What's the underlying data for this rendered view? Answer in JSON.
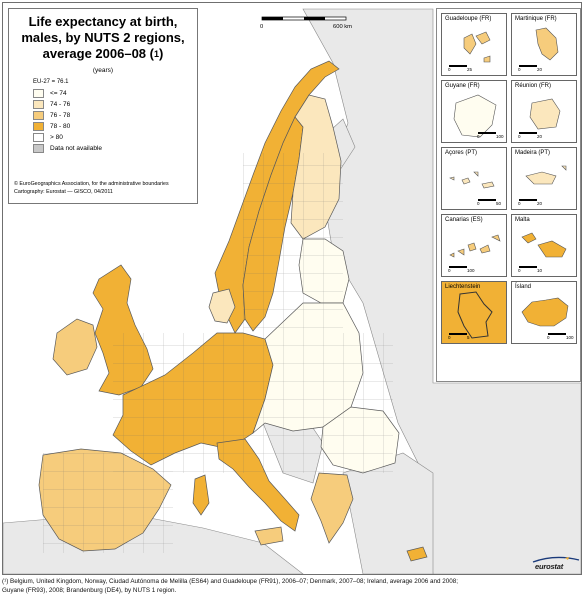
{
  "title": {
    "line1": "Life expectancy at birth,",
    "line2": "males, by NUTS 2 regions,",
    "line3_prefix": "average 2006–08 (",
    "line3_mark": "1",
    "line3_suffix": ")"
  },
  "unit": "(years)",
  "eu_average": "EU-27 = 76.1",
  "legend": {
    "classes": [
      {
        "label": "<= 74",
        "color": "#fffdf0"
      },
      {
        "label": "74 - 76",
        "color": "#fbe7bd"
      },
      {
        "label": "76 - 78",
        "color": "#f6cc7c"
      },
      {
        "label": "78 - 80",
        "color": "#f1b135"
      },
      {
        "label": "> 80",
        "color": "#ffffff"
      }
    ],
    "na": {
      "label": "Data not available",
      "color": "#c8c8c8"
    }
  },
  "credits": {
    "line1": "© EuroGeographics Association, for the administrative boundaries",
    "line2": "Cartography: Eurostat — GISCO, 04/2011"
  },
  "scale_bar": {
    "start": "0",
    "end": "600 km"
  },
  "insets": [
    {
      "name": "Guadeloupe (FR)",
      "scale_end": "25"
    },
    {
      "name": "Martinique (FR)",
      "scale_end": "20"
    },
    {
      "name": "Guyane (FR)",
      "scale_end": "100"
    },
    {
      "name": "Réunion (FR)",
      "scale_end": "20"
    },
    {
      "name": "Açores (PT)",
      "scale_end": "50"
    },
    {
      "name": "Madeira (PT)",
      "scale_end": "20"
    },
    {
      "name": "Canarias (ES)",
      "scale_end": "100"
    },
    {
      "name": "Malta",
      "scale_end": "10"
    },
    {
      "name": "Liechtenstein",
      "scale_end": "5"
    },
    {
      "name": "Ísland",
      "scale_end": "100"
    }
  ],
  "inset_scale_start": "0",
  "logo": {
    "text": "eurostat",
    "color": "#1a3a7a"
  },
  "footnote": {
    "line1": "(¹) Belgium, United Kingdom, Norway, Ciudad Autónoma de Melilla (ES64) and Guadeloupe (FR91), 2006–07; Denmark, 2007–08; Ireland, average 2006 and 2008;",
    "line2": "Guyane (FR93), 2008; Brandenburg (DE4), by NUTS 1 region."
  },
  "colors": {
    "sea": "#ffffff",
    "non_eu_land": "#e9e9e9",
    "border": "#5a5a5a"
  }
}
